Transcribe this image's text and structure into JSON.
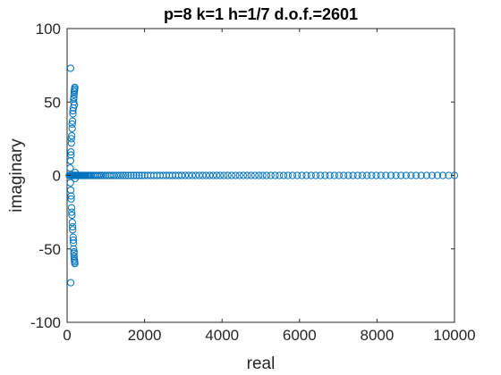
{
  "chart_data": {
    "type": "scatter",
    "title": "p=8 k=1 h=1/7 d.o.f.=2601",
    "xlabel": "real",
    "ylabel": "imaginary",
    "xlim": [
      0,
      10000
    ],
    "ylim": [
      -100,
      100
    ],
    "xticks": [
      0,
      2000,
      4000,
      6000,
      8000,
      10000
    ],
    "yticks": [
      -100,
      -50,
      0,
      50,
      100
    ],
    "xtick_labels": [
      "0",
      "2000",
      "4000",
      "6000",
      "8000",
      "10000"
    ],
    "ytick_labels": [
      "-100",
      "-50",
      "0",
      "50",
      "100"
    ],
    "marker_color": "#0072BD",
    "marker": "circle",
    "grid": false,
    "box": true,
    "series": [
      {
        "x": [
          55,
          72,
          85,
          95,
          105,
          115,
          125,
          135,
          145,
          155,
          165,
          175,
          185,
          195,
          205,
          215,
          225,
          235,
          245,
          255,
          265,
          275,
          285,
          295,
          305,
          320,
          340,
          360,
          380,
          400,
          420,
          445,
          470,
          500,
          530,
          560,
          590,
          620,
          660,
          700,
          740,
          780,
          820,
          860,
          900,
          950,
          1000,
          1050,
          1100,
          1150,
          1210,
          1270,
          1330,
          1390,
          1450,
          1510,
          1580,
          1650,
          1720,
          1790,
          1860,
          1930,
          2000,
          2080,
          2160,
          2240,
          2320,
          2400,
          2480,
          2560,
          2640,
          2720,
          2800,
          2880,
          2960,
          3050,
          3140,
          3230,
          3320,
          3410,
          3500,
          3590,
          3680,
          3770,
          3860,
          3950,
          4050,
          4150,
          4250,
          4350,
          4450,
          4550,
          4650,
          4750,
          4850,
          4950,
          5050,
          5150,
          5260,
          5370,
          5480,
          5590,
          5700,
          5820,
          5940,
          6060,
          6180,
          6300,
          6420,
          6540,
          6660,
          6780,
          6900,
          7020,
          7140,
          7260,
          7380,
          7500,
          7620,
          7740,
          7860,
          7980,
          8100,
          8230,
          8360,
          8490,
          8620,
          8750,
          8880,
          9010,
          9140,
          9280,
          9420,
          9560,
          9700,
          9850,
          10000,
          80,
          90,
          100,
          110,
          120,
          130,
          140,
          150,
          160,
          170,
          175,
          180,
          185,
          190,
          195,
          200,
          210,
          85,
          95,
          105,
          115,
          125,
          135,
          145,
          155,
          165,
          170,
          175,
          180,
          185,
          190,
          195,
          200,
          210,
          90,
          100,
          110,
          130,
          150,
          170,
          190,
          95,
          105,
          120,
          140,
          160,
          180
        ],
        "y": [
          0,
          0,
          0,
          0,
          0,
          0,
          0,
          0,
          0,
          0,
          0,
          0,
          0,
          0,
          0,
          0,
          0,
          0,
          0,
          0,
          0,
          0,
          0,
          0,
          0,
          0,
          0,
          0,
          0,
          0,
          0,
          0,
          0,
          0,
          0,
          0,
          0,
          0,
          0,
          0,
          0,
          0,
          0,
          0,
          0,
          0,
          0,
          0,
          0,
          0,
          0,
          0,
          0,
          0,
          0,
          0,
          0,
          0,
          0,
          0,
          0,
          0,
          0,
          0,
          0,
          0,
          0,
          0,
          0,
          0,
          0,
          0,
          0,
          0,
          0,
          0,
          0,
          0,
          0,
          0,
          0,
          0,
          0,
          0,
          0,
          0,
          0,
          0,
          0,
          0,
          0,
          0,
          0,
          0,
          0,
          0,
          0,
          0,
          0,
          0,
          0,
          0,
          0,
          0,
          0,
          0,
          0,
          0,
          0,
          0,
          0,
          0,
          0,
          0,
          0,
          0,
          0,
          0,
          0,
          0,
          0,
          0,
          0,
          0,
          0,
          0,
          0,
          0,
          0,
          0,
          0,
          0,
          0,
          0,
          0,
          0,
          0,
          5,
          10,
          16,
          22,
          27,
          32,
          37,
          42,
          46,
          50,
          53,
          55,
          57,
          58,
          59,
          60,
          2,
          -5,
          -10,
          -16,
          -22,
          -27,
          -32,
          -37,
          -42,
          -46,
          -50,
          -53,
          -55,
          -57,
          -58,
          -59,
          -60,
          -2,
          73,
          14,
          25,
          35,
          44,
          52,
          48,
          -73,
          -14,
          -25,
          -35,
          -44,
          -52
        ]
      }
    ]
  }
}
